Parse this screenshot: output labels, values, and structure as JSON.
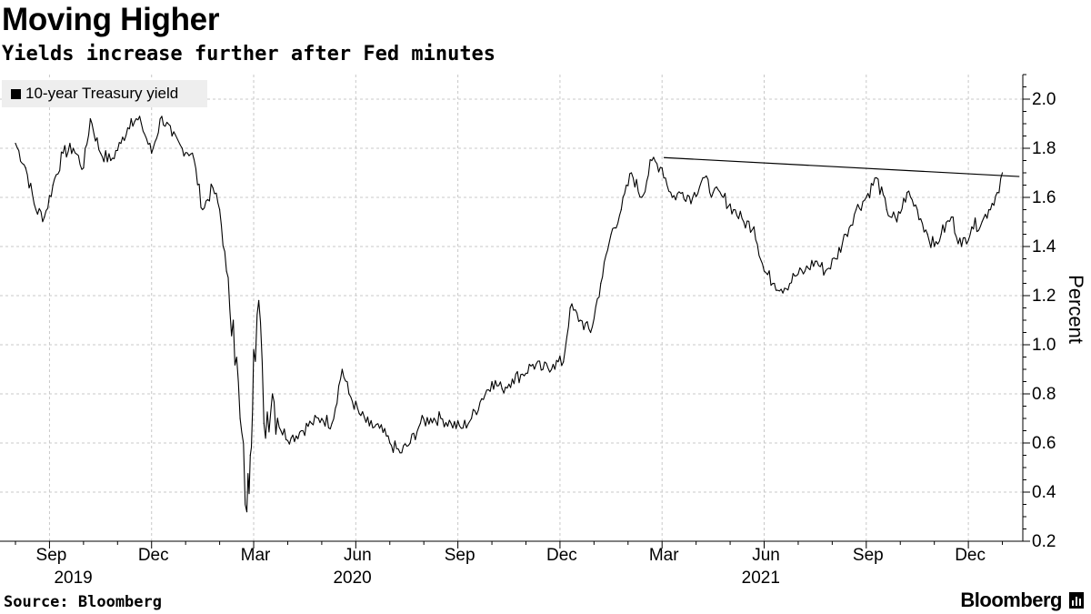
{
  "title": "Moving Higher",
  "subtitle": "Yields increase further after Fed minutes",
  "source": "Source: Bloomberg",
  "brand": "Bloomberg",
  "colors": {
    "line": "#000000",
    "grid": "#c8c8c8",
    "legend_bg": "#eeeeee",
    "background": "#ffffff"
  },
  "chart_data": {
    "type": "line",
    "title": "Moving Higher",
    "subtitle": "Yields increase further after Fed minutes",
    "xlabel": "",
    "ylabel": "Percent",
    "legend": {
      "position": "top-left",
      "entries": [
        "10-year Treasury yield"
      ]
    },
    "grid": true,
    "ylim": [
      0.2,
      2.1
    ],
    "y_ticks": [
      0.2,
      0.4,
      0.6,
      0.8,
      1.0,
      1.2,
      1.4,
      1.6,
      1.8,
      2.0
    ],
    "y_tick_labels": [
      "0.2",
      "0.4",
      "0.6",
      "0.8",
      "1.0",
      "1.2",
      "1.4",
      "1.6",
      "1.8",
      "2.0"
    ],
    "x_unit": "months since Aug 1 2019",
    "xlim": [
      0,
      29.6
    ],
    "x_ticks": [
      {
        "x": 1,
        "label": "Sep"
      },
      {
        "x": 4,
        "label": "Dec"
      },
      {
        "x": 7,
        "label": "Mar"
      },
      {
        "x": 10,
        "label": "Jun"
      },
      {
        "x": 13,
        "label": "Sep"
      },
      {
        "x": 16,
        "label": "Dec"
      },
      {
        "x": 19,
        "label": "Mar"
      },
      {
        "x": 22,
        "label": "Jun"
      },
      {
        "x": 25,
        "label": "Sep"
      },
      {
        "x": 28,
        "label": "Dec"
      }
    ],
    "year_labels": [
      {
        "x": 1.7,
        "label": "2019"
      },
      {
        "x": 9.9,
        "label": "2020"
      },
      {
        "x": 21.9,
        "label": "2021"
      }
    ],
    "series": [
      {
        "name": "10-year Treasury yield",
        "x": [
          0.0,
          0.3,
          0.6,
          0.85,
          1.1,
          1.4,
          1.7,
          2.0,
          2.2,
          2.5,
          2.8,
          3.1,
          3.4,
          3.7,
          4.0,
          4.3,
          4.6,
          4.9,
          5.2,
          5.5,
          5.8,
          6.0,
          6.2,
          6.4,
          6.6,
          6.8,
          6.9,
          7.0,
          7.15,
          7.3,
          7.55,
          7.8,
          8.1,
          8.4,
          8.7,
          9.0,
          9.3,
          9.6,
          9.8,
          10.1,
          10.4,
          10.7,
          11.0,
          11.3,
          11.6,
          11.9,
          12.2,
          12.5,
          12.8,
          13.1,
          13.4,
          13.7,
          14.0,
          14.3,
          14.6,
          14.9,
          15.2,
          15.5,
          15.8,
          16.1,
          16.3,
          16.6,
          16.9,
          17.2,
          17.5,
          17.8,
          18.1,
          18.4,
          18.7,
          19.0,
          19.3,
          19.6,
          19.9,
          20.2,
          20.5,
          20.8,
          21.1,
          21.4,
          21.7,
          22.0,
          22.3,
          22.6,
          22.9,
          23.2,
          23.5,
          23.8,
          24.1,
          24.4,
          24.7,
          25.0,
          25.3,
          25.6,
          25.9,
          26.2,
          26.5,
          26.8,
          27.0,
          27.2,
          27.5,
          27.8,
          28.1,
          28.4,
          28.6,
          28.85,
          29.0
        ],
        "values": [
          1.82,
          1.72,
          1.55,
          1.52,
          1.65,
          1.78,
          1.8,
          1.72,
          1.92,
          1.78,
          1.75,
          1.82,
          1.92,
          1.9,
          1.78,
          1.93,
          1.85,
          1.8,
          1.78,
          1.55,
          1.64,
          1.55,
          1.3,
          1.1,
          0.7,
          0.32,
          0.55,
          0.98,
          1.18,
          0.68,
          0.8,
          0.65,
          0.62,
          0.65,
          0.68,
          0.7,
          0.68,
          0.9,
          0.8,
          0.72,
          0.67,
          0.66,
          0.6,
          0.56,
          0.6,
          0.68,
          0.7,
          0.7,
          0.68,
          0.66,
          0.7,
          0.78,
          0.85,
          0.82,
          0.86,
          0.88,
          0.92,
          0.9,
          0.92,
          0.93,
          1.15,
          1.1,
          1.05,
          1.25,
          1.45,
          1.55,
          1.7,
          1.6,
          1.75,
          1.72,
          1.6,
          1.62,
          1.6,
          1.68,
          1.62,
          1.6,
          1.55,
          1.5,
          1.48,
          1.3,
          1.25,
          1.23,
          1.28,
          1.3,
          1.34,
          1.3,
          1.35,
          1.45,
          1.55,
          1.6,
          1.68,
          1.55,
          1.5,
          1.62,
          1.55,
          1.45,
          1.4,
          1.45,
          1.52,
          1.4,
          1.48,
          1.5,
          1.55,
          1.62,
          1.7
        ]
      }
    ],
    "annotations": [
      {
        "type": "trendline",
        "x": [
          19.05,
          29.5
        ],
        "values": [
          1.762,
          1.685
        ]
      }
    ]
  },
  "legend_label": "10-year Treasury yield",
  "ylabel": "Percent"
}
